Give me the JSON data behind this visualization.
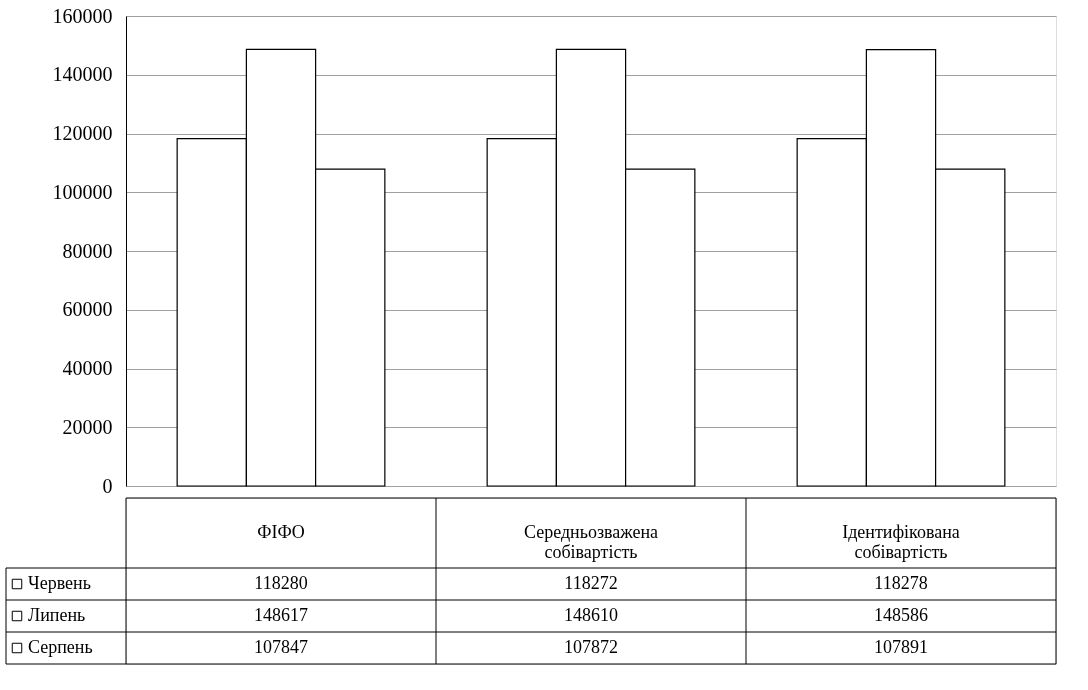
{
  "chart_data": {
    "type": "bar",
    "categories": [
      "ФІФО",
      "Середньозважена собівартість",
      "Ідентифікована собівартість"
    ],
    "series": [
      {
        "name": "Червень",
        "color": "#ffffff",
        "values": [
          118280,
          118272,
          118278
        ]
      },
      {
        "name": "Липень",
        "color": "#ffffff",
        "values": [
          148617,
          148610,
          148586
        ]
      },
      {
        "name": "Серпень",
        "color": "#ffffff",
        "values": [
          107847,
          107872,
          107891
        ]
      }
    ],
    "ylim": [
      0,
      160000
    ],
    "yticks": [
      0,
      20000,
      40000,
      60000,
      80000,
      100000,
      120000,
      140000,
      160000
    ],
    "grid": "y",
    "data_labels": true,
    "legend": "bottom"
  }
}
